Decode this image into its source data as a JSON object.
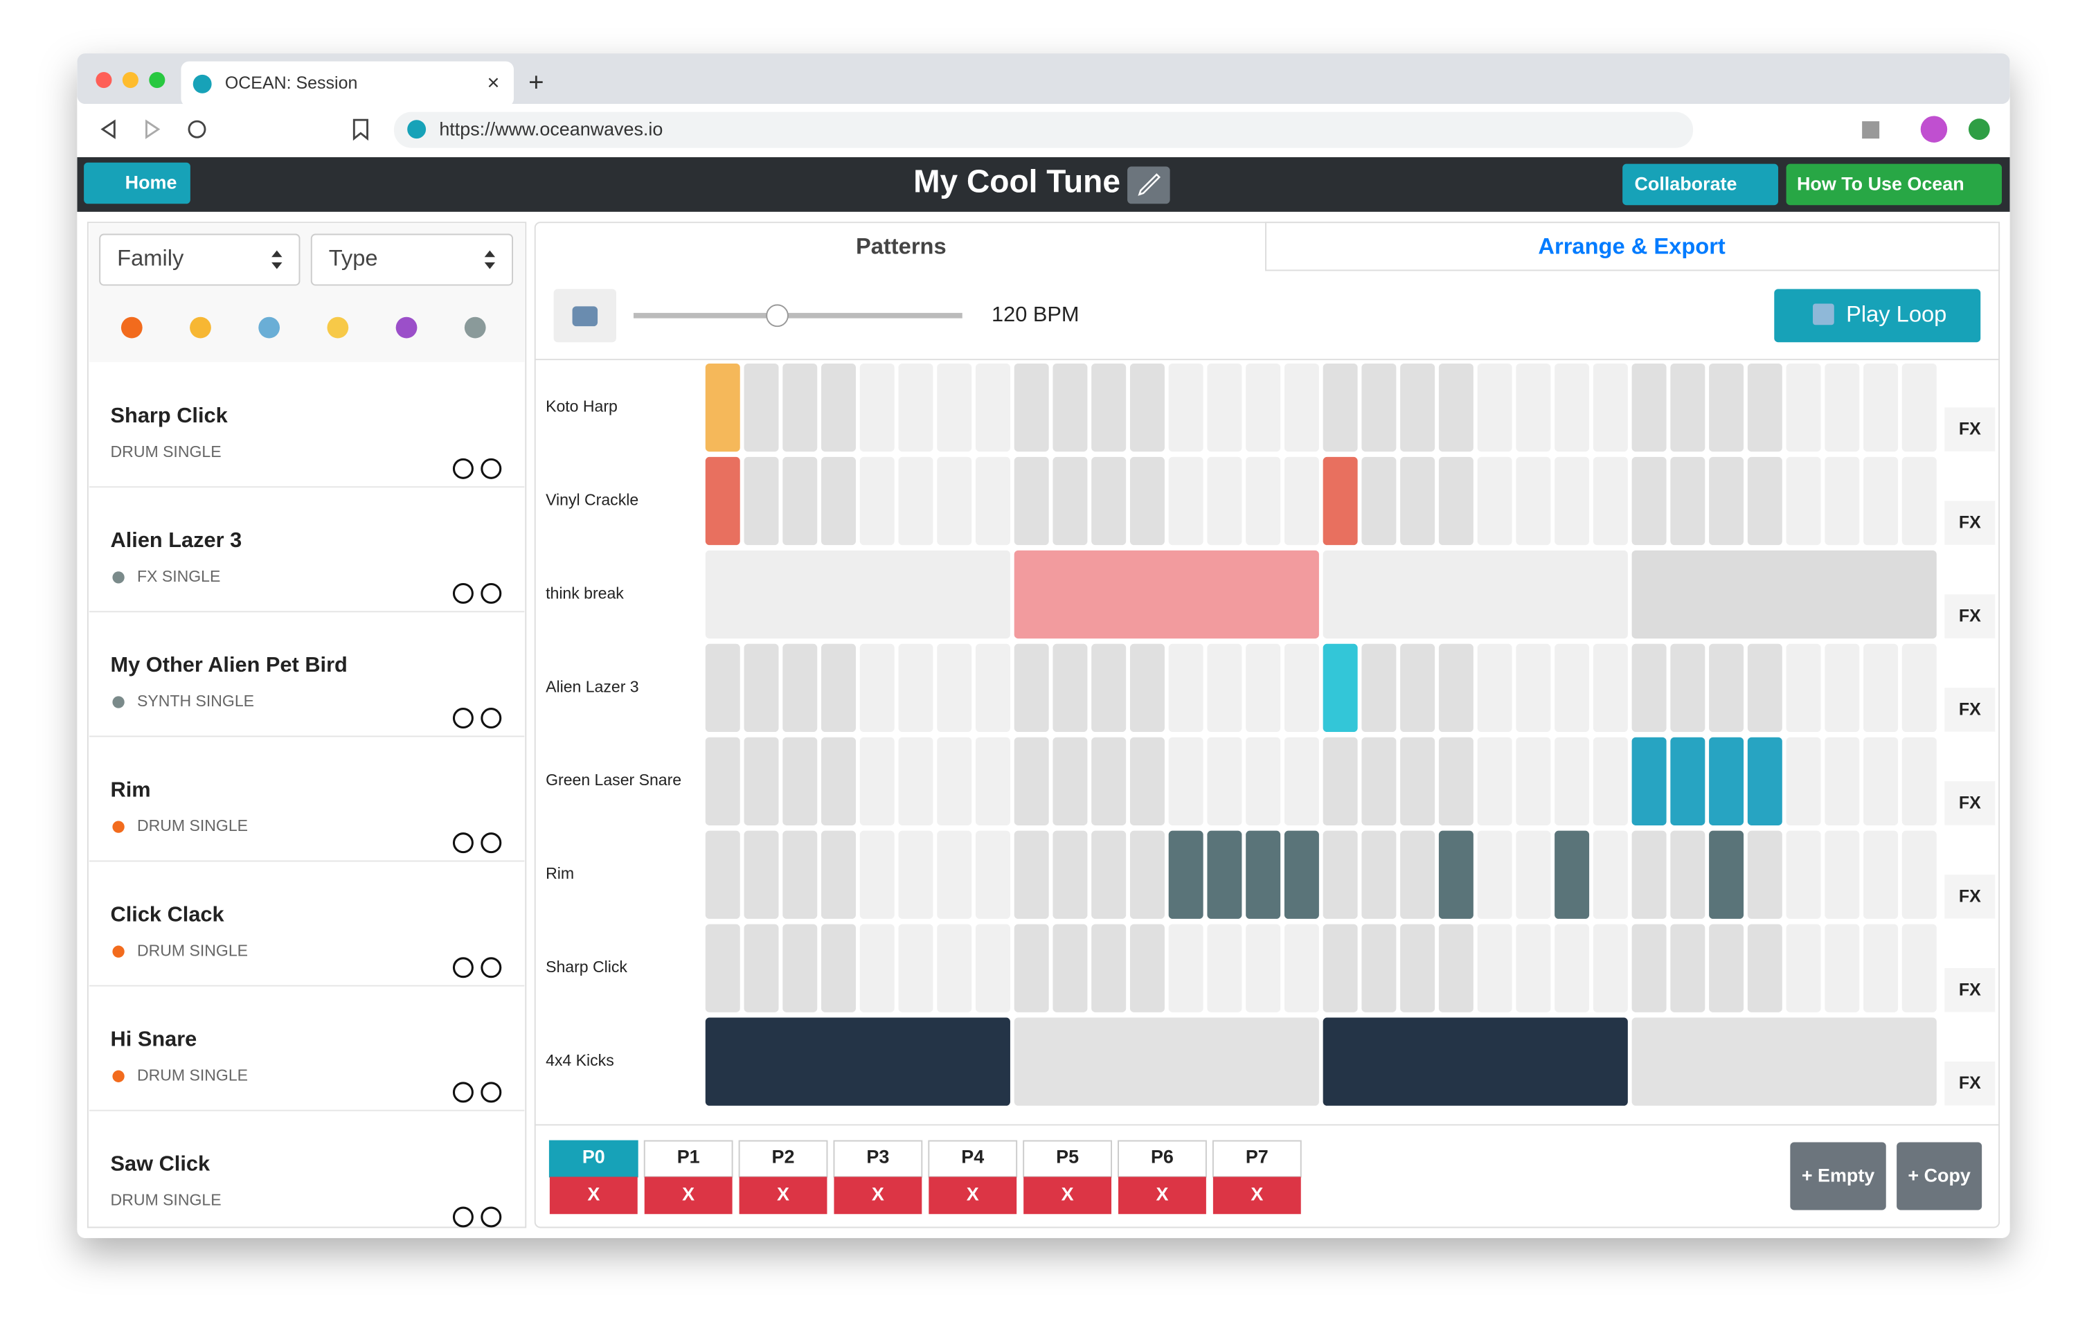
{
  "browser": {
    "tab_title": "OCEAN: Session",
    "url": "https://www.oceanwaves.io"
  },
  "header": {
    "home": "Home",
    "title": "My Cool Tune",
    "collaborate": "Collaborate",
    "help": "How To Use Ocean"
  },
  "sidebar": {
    "filters": [
      "Family",
      "Type"
    ],
    "sounds": [
      {
        "name": "Sharp Click",
        "type": "DRUM SINGLE"
      },
      {
        "name": "Alien Lazer 3",
        "type": "FX SINGLE"
      },
      {
        "name": "My Other Alien Pet Bird",
        "type": "SYNTH SINGLE"
      },
      {
        "name": "Rim",
        "type": "DRUM SINGLE"
      },
      {
        "name": "Click Clack",
        "type": "DRUM SINGLE"
      },
      {
        "name": "Hi Snare",
        "type": "DRUM SINGLE"
      },
      {
        "name": "Saw Click",
        "type": "DRUM SINGLE"
      }
    ]
  },
  "main": {
    "tabs": [
      "Patterns",
      "Arrange & Export"
    ],
    "tempo": "120 BPM",
    "play": "Play Loop",
    "tracks": [
      "Koto Harp",
      "Vinyl Crackle",
      "think break",
      "Alien Lazer 3",
      "Green Laser Snare",
      "Rim",
      "Sharp Click",
      "4x4 Kicks"
    ],
    "fx": "FX",
    "patterns": [
      "P0",
      "P1",
      "P2",
      "P3",
      "P4",
      "P5",
      "P6",
      "P7"
    ],
    "delete": "X",
    "add_empty": "+ Empty",
    "add_copy": "+ Copy"
  }
}
